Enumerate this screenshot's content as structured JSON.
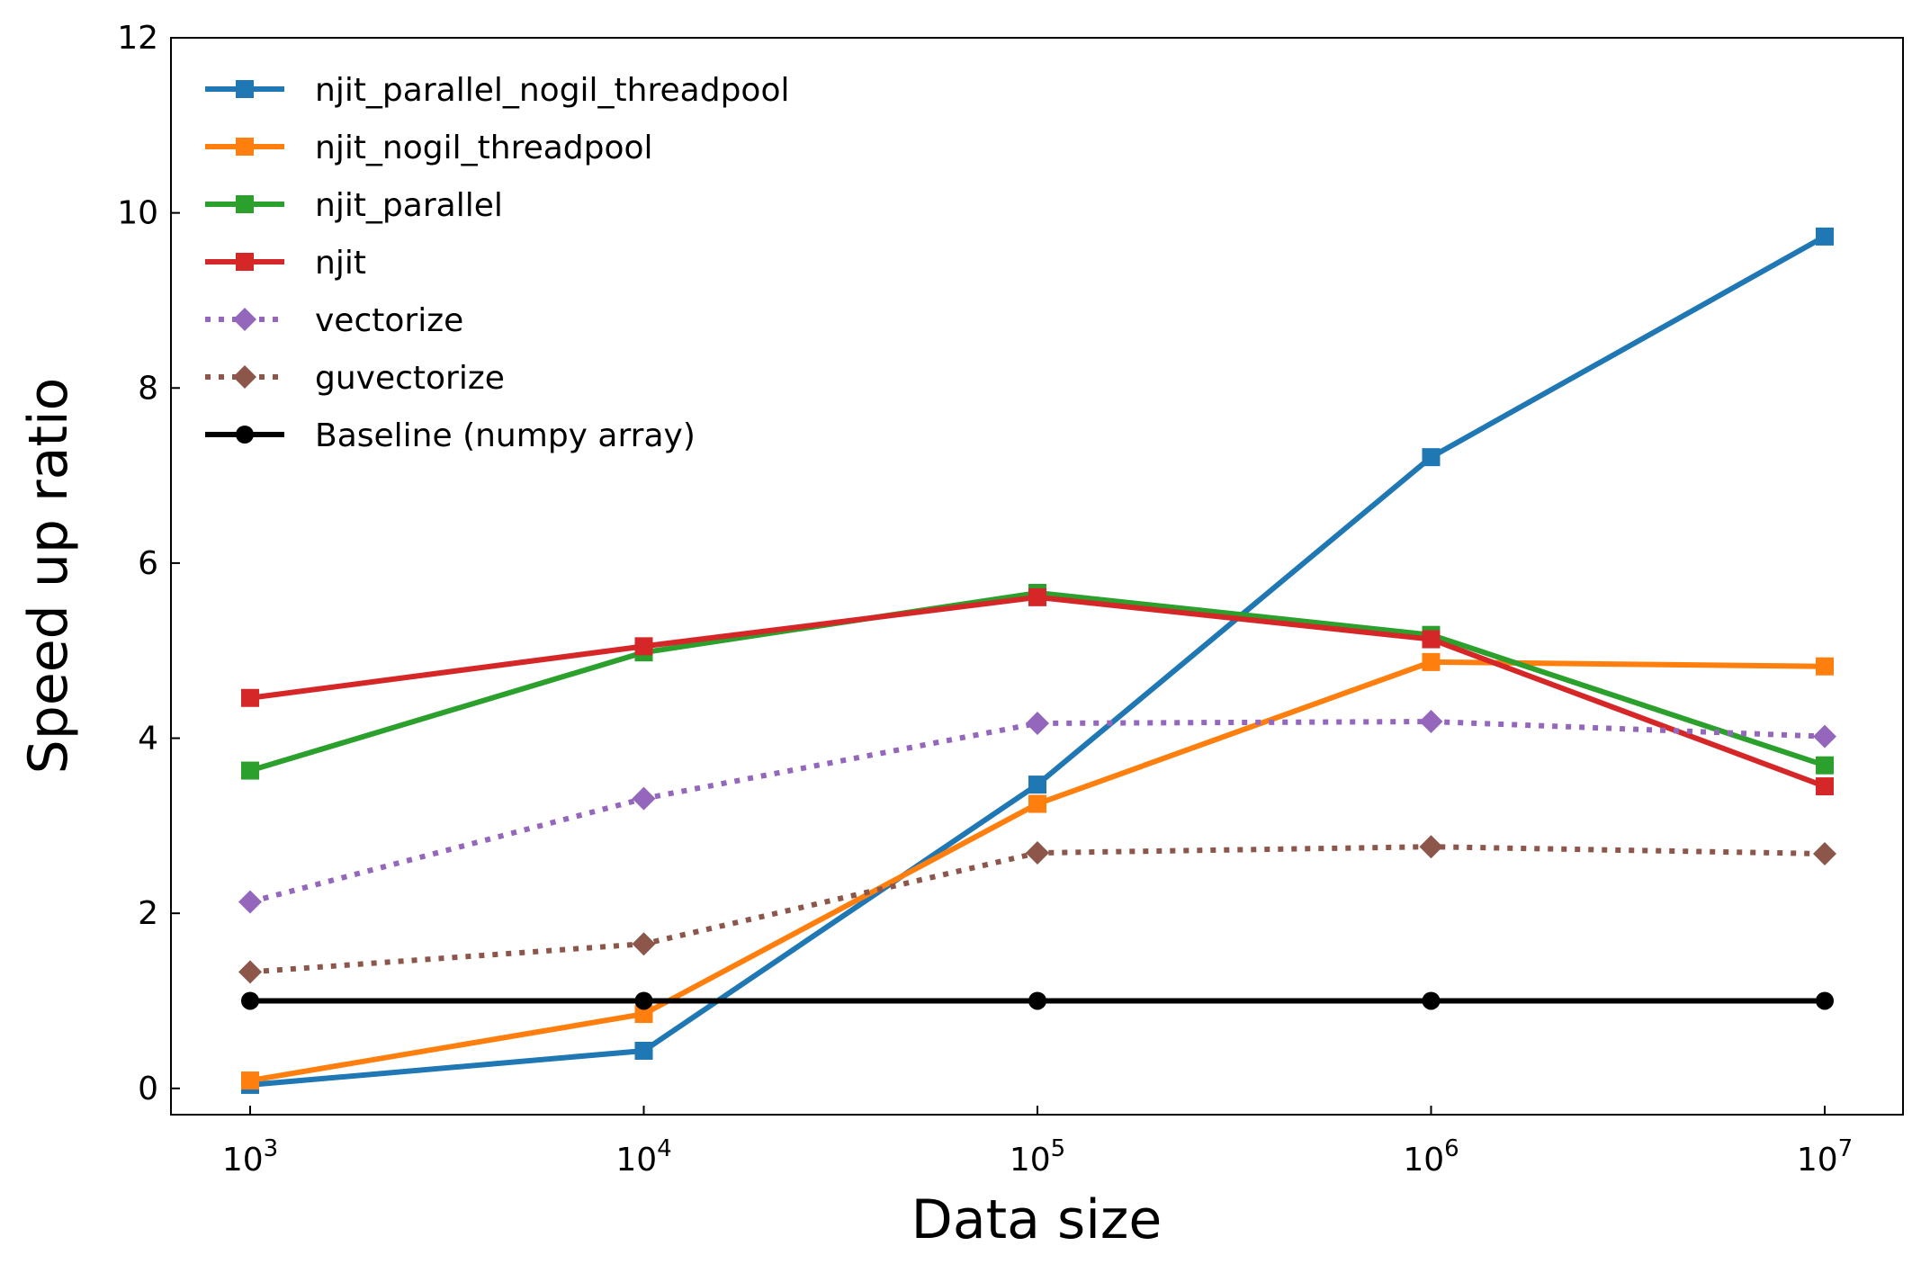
{
  "chart_data": {
    "type": "line",
    "title": "",
    "xlabel": "Data size",
    "ylabel": "Speed up ratio",
    "xscale": "log",
    "x": [
      1000,
      10000,
      100000,
      1000000,
      10000000
    ],
    "x_tick_labels": [
      {
        "base": "10",
        "exp": "3"
      },
      {
        "base": "10",
        "exp": "4"
      },
      {
        "base": "10",
        "exp": "5"
      },
      {
        "base": "10",
        "exp": "6"
      },
      {
        "base": "10",
        "exp": "7"
      }
    ],
    "y_ticks": [
      0,
      2,
      4,
      6,
      8,
      10,
      12
    ],
    "ylim": [
      -0.3,
      12
    ],
    "grid": false,
    "legend_position": "upper-left",
    "series": [
      {
        "name": "njit_parallel_nogil_threadpool",
        "color": "#1f77b4",
        "style": "solid",
        "marker": "square",
        "values": [
          0.04,
          0.43,
          3.47,
          7.21,
          9.73
        ]
      },
      {
        "name": "njit_nogil_threadpool",
        "color": "#ff7f0e",
        "style": "solid",
        "marker": "square",
        "values": [
          0.09,
          0.85,
          3.25,
          4.87,
          4.82
        ]
      },
      {
        "name": "njit_parallel",
        "color": "#2ca02c",
        "style": "solid",
        "marker": "square",
        "values": [
          3.63,
          4.98,
          5.66,
          5.18,
          3.69
        ]
      },
      {
        "name": "njit",
        "color": "#d62728",
        "style": "solid",
        "marker": "square",
        "values": [
          4.46,
          5.05,
          5.61,
          5.13,
          3.45
        ]
      },
      {
        "name": "vectorize",
        "color": "#9467bd",
        "style": "dotted",
        "marker": "diamond",
        "values": [
          2.13,
          3.31,
          4.17,
          4.19,
          4.02
        ]
      },
      {
        "name": "guvectorize",
        "color": "#8c564b",
        "style": "dotted",
        "marker": "diamond",
        "values": [
          1.33,
          1.65,
          2.69,
          2.76,
          2.68
        ]
      },
      {
        "name": "Baseline (numpy array)",
        "color": "#000000",
        "style": "solid",
        "marker": "circle",
        "values": [
          1,
          1,
          1,
          1,
          1
        ]
      }
    ]
  }
}
